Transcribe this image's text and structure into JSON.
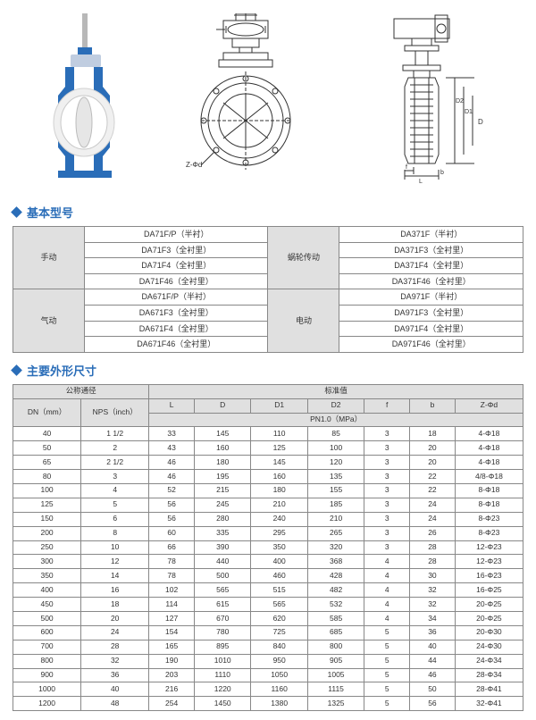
{
  "sections": {
    "model_title": "基本型号",
    "dim_title": "主要外形尺寸"
  },
  "model_table": {
    "col1_labels": [
      "手动",
      "气动"
    ],
    "col3_labels": [
      "蜗轮传动",
      "电动"
    ],
    "rows": [
      {
        "a": "DA71F/P（半衬）",
        "b": "DA371F（半衬）"
      },
      {
        "a": "DA71F3（全衬里）",
        "b": "DA371F3（全衬里）"
      },
      {
        "a": "DA71F4（全衬里）",
        "b": "DA371F4（全衬里）"
      },
      {
        "a": "DA71F46（全衬里）",
        "b": "DA371F46（全衬里）"
      },
      {
        "a": "DA671F/P（半衬）",
        "b": "DA971F（半衬）"
      },
      {
        "a": "DA671F3（全衬里）",
        "b": "DA971F3（全衬里）"
      },
      {
        "a": "DA671F4（全衬里）",
        "b": "DA971F4（全衬里）"
      },
      {
        "a": "DA671F46（全衬里）",
        "b": "DA971F46（全衬里）"
      }
    ]
  },
  "dim_table": {
    "group_headers": {
      "left": "公称通径",
      "right": "标准值"
    },
    "col_headers": [
      "DN（mm）",
      "NPS（inch）",
      "L",
      "D",
      "D1",
      "D2",
      "f",
      "b",
      "Z-Φd"
    ],
    "pn_label": "PN1.0（MPa）",
    "rows": [
      [
        "40",
        "1 1/2",
        "33",
        "145",
        "110",
        "85",
        "3",
        "18",
        "4-Φ18"
      ],
      [
        "50",
        "2",
        "43",
        "160",
        "125",
        "100",
        "3",
        "20",
        "4-Φ18"
      ],
      [
        "65",
        "2 1/2",
        "46",
        "180",
        "145",
        "120",
        "3",
        "20",
        "4-Φ18"
      ],
      [
        "80",
        "3",
        "46",
        "195",
        "160",
        "135",
        "3",
        "22",
        "4/8-Φ18"
      ],
      [
        "100",
        "4",
        "52",
        "215",
        "180",
        "155",
        "3",
        "22",
        "8-Φ18"
      ],
      [
        "125",
        "5",
        "56",
        "245",
        "210",
        "185",
        "3",
        "24",
        "8-Φ18"
      ],
      [
        "150",
        "6",
        "56",
        "280",
        "240",
        "210",
        "3",
        "24",
        "8-Φ23"
      ],
      [
        "200",
        "8",
        "60",
        "335",
        "295",
        "265",
        "3",
        "26",
        "8-Φ23"
      ],
      [
        "250",
        "10",
        "66",
        "390",
        "350",
        "320",
        "3",
        "28",
        "12-Φ23"
      ],
      [
        "300",
        "12",
        "78",
        "440",
        "400",
        "368",
        "4",
        "28",
        "12-Φ23"
      ],
      [
        "350",
        "14",
        "78",
        "500",
        "460",
        "428",
        "4",
        "30",
        "16-Φ23"
      ],
      [
        "400",
        "16",
        "102",
        "565",
        "515",
        "482",
        "4",
        "32",
        "16-Φ25"
      ],
      [
        "450",
        "18",
        "114",
        "615",
        "565",
        "532",
        "4",
        "32",
        "20-Φ25"
      ],
      [
        "500",
        "20",
        "127",
        "670",
        "620",
        "585",
        "4",
        "34",
        "20-Φ25"
      ],
      [
        "600",
        "24",
        "154",
        "780",
        "725",
        "685",
        "5",
        "36",
        "20-Φ30"
      ],
      [
        "700",
        "28",
        "165",
        "895",
        "840",
        "800",
        "5",
        "40",
        "24-Φ30"
      ],
      [
        "800",
        "32",
        "190",
        "1010",
        "950",
        "905",
        "5",
        "44",
        "24-Φ34"
      ],
      [
        "900",
        "36",
        "203",
        "1110",
        "1050",
        "1005",
        "5",
        "46",
        "28-Φ34"
      ],
      [
        "1000",
        "40",
        "216",
        "1220",
        "1160",
        "1115",
        "5",
        "50",
        "28-Φ41"
      ],
      [
        "1200",
        "48",
        "254",
        "1450",
        "1380",
        "1325",
        "5",
        "56",
        "32-Φ41"
      ]
    ]
  },
  "figures": {
    "label_Z": "Z-Φd",
    "label_D": "D",
    "label_D1": "D1",
    "label_D2": "D2",
    "label_f": "f",
    "label_b": "b",
    "label_L": "L",
    "colors": {
      "valve_body_blue": "#2a6db8",
      "valve_body_white": "#f2f2f2",
      "tech_line": "#333333",
      "tech_fill": "#ffffff"
    }
  }
}
